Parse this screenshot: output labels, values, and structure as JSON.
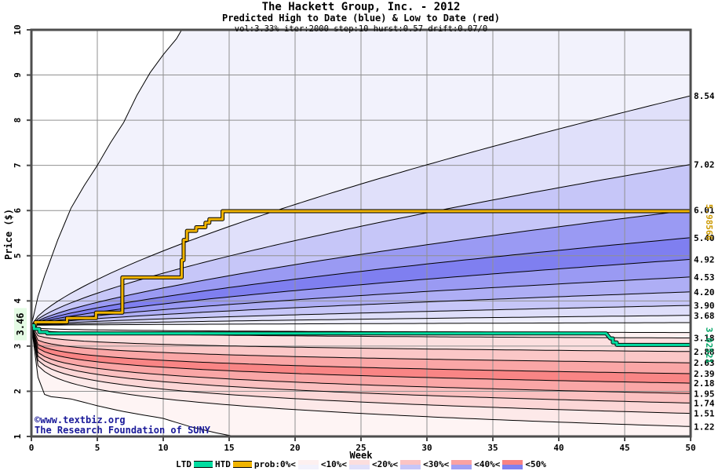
{
  "title": {
    "line1": "The Hackett Group, Inc. - 2012",
    "line2": "Predicted High to Date (blue) &  Low to Date (red)",
    "line3": "vol:3.33% iter:2000 step:10 hurst:0.57 drift:0.07/0"
  },
  "axes": {
    "x_label": "Week",
    "y_label": "Price ($)"
  },
  "annotations": {
    "start_price": "3.46",
    "htd_final": "5.98566",
    "ltd_final": "3.02521",
    "copyright1": "©www.textbiz.org",
    "copyright2": "The Research Foundation of SUNY"
  },
  "legend": {
    "ltd_label": "LTD",
    "htd_label": "HTD",
    "prob_labels": [
      "prob:0%<",
      "<10%<",
      "<20%<",
      "<30%<",
      "<40%<",
      "<50%"
    ],
    "swatches": [
      {
        "low": "#fdf0f0",
        "high": "#f2f2fc"
      },
      {
        "low": "#fcdede",
        "high": "#e0e0fa"
      },
      {
        "low": "#fbc4c4",
        "high": "#c6c6f8"
      },
      {
        "low": "#faa2a2",
        "high": "#a0a0f4"
      },
      {
        "low": "#f98383",
        "high": "#8080f0"
      }
    ]
  },
  "chart_data": {
    "type": "area",
    "title": "The Hackett Group, Inc. - 2012",
    "subtitle": "Predicted High to Date (blue) &  Low to Date (red)",
    "params_line": "vol:3.33% iter:2000 step:10 hurst:0.57 drift:0.07/0",
    "xlabel": "Week",
    "ylabel": "Price ($)",
    "x_range": [
      0,
      50
    ],
    "y_range": [
      1,
      10
    ],
    "x_ticks": [
      0,
      5,
      10,
      15,
      20,
      25,
      30,
      35,
      40,
      45,
      50
    ],
    "y_ticks": [
      1,
      2,
      3,
      4,
      5,
      6,
      7,
      8,
      9,
      10
    ],
    "grid": true,
    "start_price": 3.46,
    "htd_final_value": 5.98566,
    "ltd_final_value": 3.02521,
    "high_deciles_week50": [
      8.54,
      7.02,
      6.01,
      5.4,
      4.92,
      4.53,
      4.2,
      3.9,
      3.68
    ],
    "low_deciles_week50": [
      3.18,
      2.88,
      2.63,
      2.39,
      2.18,
      1.95,
      1.74,
      1.51,
      1.22
    ],
    "high_inner_end": 3.52,
    "low_inner_end": 3.3,
    "high_exponent": 0.7,
    "low_exponent": 0.2,
    "max_envelope": [
      [
        0,
        3.46
      ],
      [
        0.5,
        4.1
      ],
      [
        1,
        4.55
      ],
      [
        2,
        5.35
      ],
      [
        3,
        6.05
      ],
      [
        4,
        6.55
      ],
      [
        5,
        7.0
      ],
      [
        6,
        7.5
      ],
      [
        7,
        7.95
      ],
      [
        8,
        8.55
      ],
      [
        9,
        9.05
      ],
      [
        10,
        9.45
      ],
      [
        11,
        9.8
      ],
      [
        12,
        10.3
      ],
      [
        13,
        11.2
      ],
      [
        50,
        26
      ]
    ],
    "min_envelope": [
      [
        0,
        3.46
      ],
      [
        0.3,
        2.55
      ],
      [
        0.8,
        1.95
      ],
      [
        1.5,
        1.88
      ],
      [
        3,
        1.83
      ],
      [
        5,
        1.68
      ],
      [
        7,
        1.55
      ],
      [
        10,
        1.4
      ],
      [
        12,
        1.22
      ],
      [
        14,
        1.08
      ],
      [
        16,
        0.97
      ],
      [
        18,
        0.88
      ],
      [
        30,
        0.55
      ],
      [
        50,
        0.2
      ]
    ],
    "htd_path": [
      [
        0,
        3.46
      ],
      [
        0.3,
        3.46
      ],
      [
        0.3,
        3.53
      ],
      [
        2.7,
        3.53
      ],
      [
        2.7,
        3.62
      ],
      [
        4.9,
        3.62
      ],
      [
        4.9,
        3.74
      ],
      [
        6.9,
        3.74
      ],
      [
        6.9,
        4.52
      ],
      [
        11.4,
        4.52
      ],
      [
        11.4,
        4.9
      ],
      [
        11.55,
        4.9
      ],
      [
        11.55,
        5.35
      ],
      [
        11.8,
        5.35
      ],
      [
        11.8,
        5.55
      ],
      [
        12.5,
        5.55
      ],
      [
        12.5,
        5.63
      ],
      [
        13.2,
        5.63
      ],
      [
        13.2,
        5.73
      ],
      [
        13.5,
        5.73
      ],
      [
        13.5,
        5.81
      ],
      [
        14.5,
        5.81
      ],
      [
        14.5,
        5.986
      ],
      [
        50,
        5.986
      ]
    ],
    "ltd_path": [
      [
        0,
        3.46
      ],
      [
        0.2,
        3.46
      ],
      [
        0.2,
        3.38
      ],
      [
        0.6,
        3.38
      ],
      [
        0.6,
        3.31
      ],
      [
        1.2,
        3.31
      ],
      [
        1.2,
        3.28
      ],
      [
        43.6,
        3.28
      ],
      [
        43.9,
        3.17
      ],
      [
        44.1,
        3.17
      ],
      [
        44.1,
        3.08
      ],
      [
        44.4,
        3.08
      ],
      [
        44.4,
        3.025
      ],
      [
        50,
        3.025
      ]
    ],
    "band_colors_high": [
      "#f2f2fc",
      "#e0e0fa",
      "#c6c6f8",
      "#9a9af3",
      "#7f7ff0",
      "#9a9af3",
      "#aeaef5",
      "#c6c6f8",
      "#dedefa",
      "#eeeefc"
    ],
    "band_colors_low": [
      "#fdf0f0",
      "#fcdfdf",
      "#fbc7c7",
      "#faa6a6",
      "#f98585",
      "#faa6a6",
      "#fbc0c0",
      "#fcd6d6",
      "#fde9e9",
      "#fef4f4"
    ],
    "colors": {
      "htd_line": "#f0b400",
      "ltd_line": "#00dca0",
      "line_outline": "#000000",
      "boundary": "#000000",
      "grid": "#909090",
      "border": "#4d4d4d",
      "htd_label": "#cc9900",
      "ltd_label": "#00a566",
      "copyright": "#1a1a99",
      "start_label_bg": "#e4fbe4",
      "tick_text": "#000000"
    },
    "legend_position": "bottom"
  }
}
